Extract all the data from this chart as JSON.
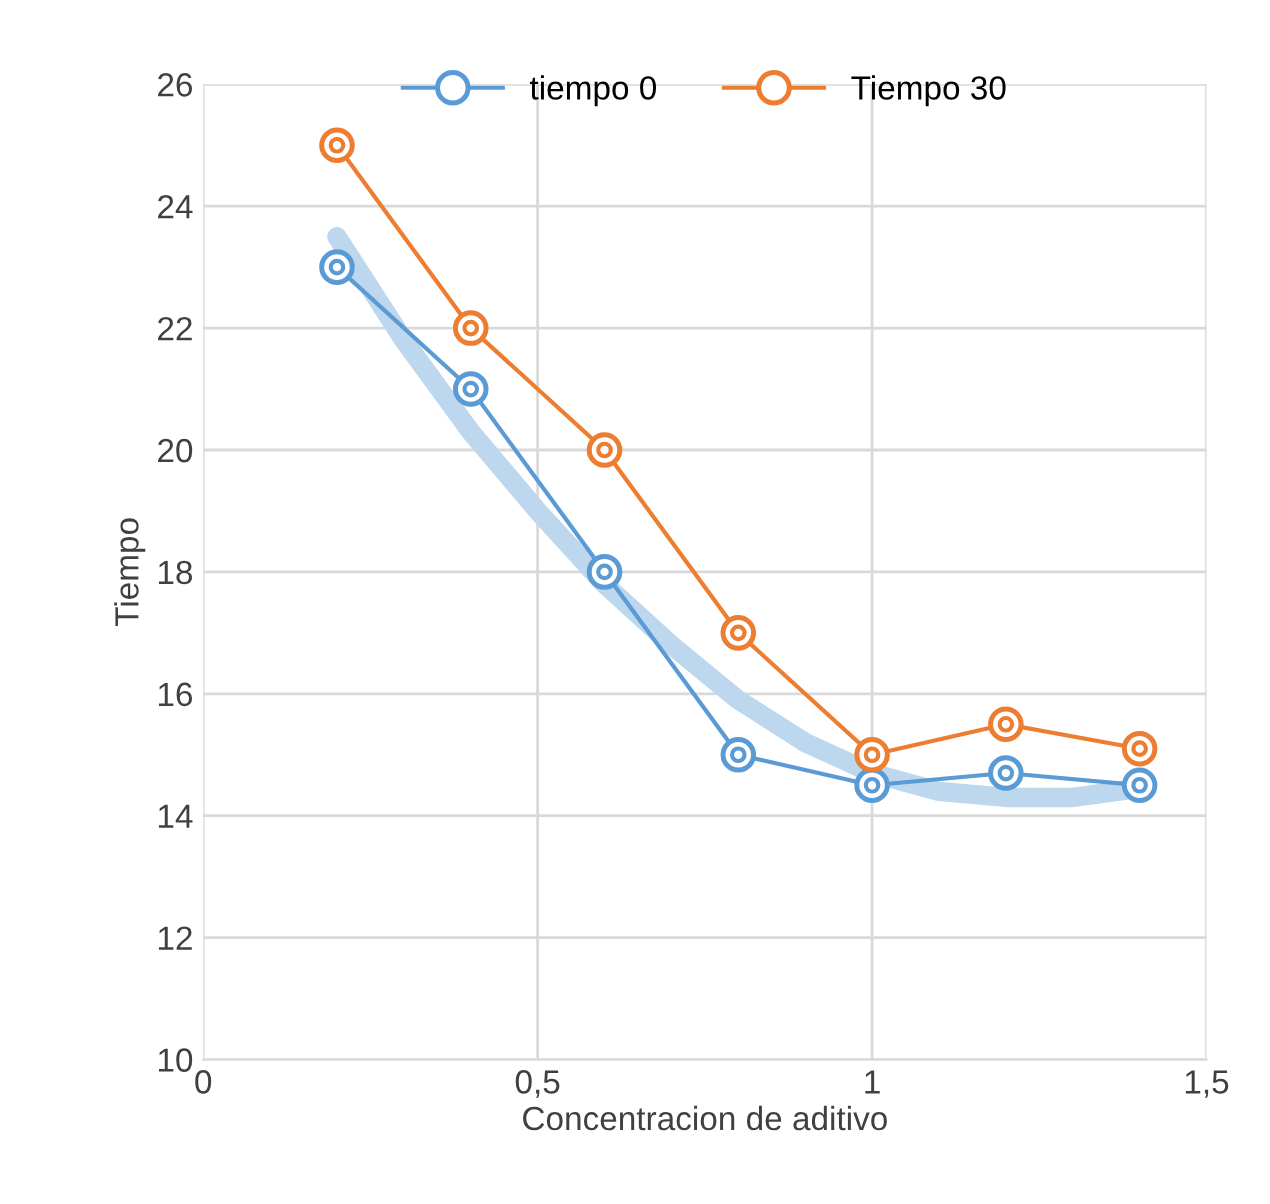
{
  "chart_data": {
    "type": "line",
    "xlabel": "Concentracion de aditivo",
    "ylabel": "Tiempo",
    "x": [
      0.2,
      0.4,
      0.6,
      0.8,
      1.0,
      1.2,
      1.4
    ],
    "series": [
      {
        "name": "tiempo 0",
        "color": "#5b9bd5",
        "values": [
          23,
          21,
          18,
          15,
          14.5,
          14.7,
          14.5
        ],
        "marker": "circle"
      },
      {
        "name": "Tiempo 30",
        "color": "#ed7d31",
        "values": [
          25,
          22,
          20,
          17,
          15,
          15.5,
          15.1
        ],
        "marker": "circle"
      },
      {
        "type": "line",
        "color": "#bdd7ee",
        "x": [
          0.2,
          0.3,
          0.4,
          0.5,
          0.6,
          0.7,
          0.8,
          0.9,
          1.0,
          1.1,
          1.2,
          1.3,
          1.4
        ],
        "values": [
          23.5,
          21.8,
          20.3,
          19.0,
          17.8,
          16.8,
          15.9,
          15.2,
          14.7,
          14.4,
          14.3,
          14.3,
          14.45
        ],
        "marker": "none"
      }
    ],
    "xlim": [
      0,
      1.5
    ],
    "xticks": [
      0,
      {
        "value": 0.5,
        "label": "0,5"
      },
      1,
      {
        "value": 1.5,
        "label": "1,5"
      }
    ],
    "ylim": [
      10,
      26
    ],
    "yticks": [
      10,
      12,
      14,
      16,
      18,
      20,
      22,
      24,
      26
    ],
    "grid": true,
    "legend": "top",
    "line_style": "solid"
  }
}
